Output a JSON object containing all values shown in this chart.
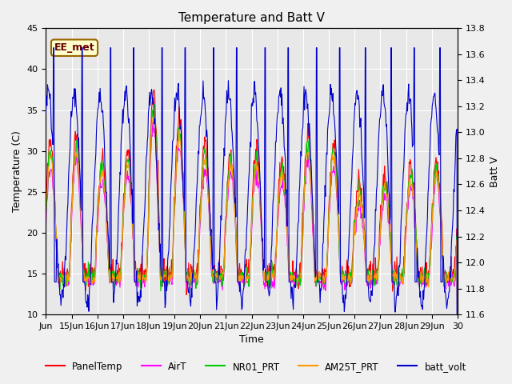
{
  "title": "Temperature and Batt V",
  "xlabel": "Time",
  "ylabel_left": "Temperature (C)",
  "ylabel_right": "Batt V",
  "annotation": "EE_met",
  "ylim_left": [
    10,
    45
  ],
  "ylim_right": [
    11.6,
    13.8
  ],
  "x_tick_labels": [
    "Jun",
    "15Jun",
    "16Jun",
    "17Jun",
    "18Jun",
    "19Jun",
    "20Jun",
    "21Jun",
    "22Jun",
    "23Jun",
    "24Jun",
    "25Jun",
    "26Jun",
    "27Jun",
    "28Jun",
    "29Jun",
    "30"
  ],
  "legend_entries": [
    "PanelTemp",
    "AirT",
    "NR01_PRT",
    "AM25T_PRT",
    "batt_volt"
  ],
  "legend_colors": [
    "#ff0000",
    "#ff00ff",
    "#00cc00",
    "#ff9900",
    "#0000cc"
  ],
  "bg_color": "#f0f0f0",
  "plot_bg_color": "#e8e8e8",
  "grid_color": "#ffffff",
  "n_days": 16,
  "pts_per_day": 48,
  "temp_base": 17,
  "temp_amp_day": [
    14,
    15,
    12,
    13,
    20,
    17,
    14,
    13,
    13,
    12,
    15,
    14,
    9,
    10,
    11,
    12
  ],
  "batt_base": 12.5,
  "batt_amp": 0.8,
  "yticks_left": [
    10,
    15,
    20,
    25,
    30,
    35,
    40,
    45
  ],
  "yticks_right": [
    11.6,
    11.8,
    12.0,
    12.2,
    12.4,
    12.6,
    12.8,
    13.0,
    13.2,
    13.4,
    13.6,
    13.8
  ]
}
